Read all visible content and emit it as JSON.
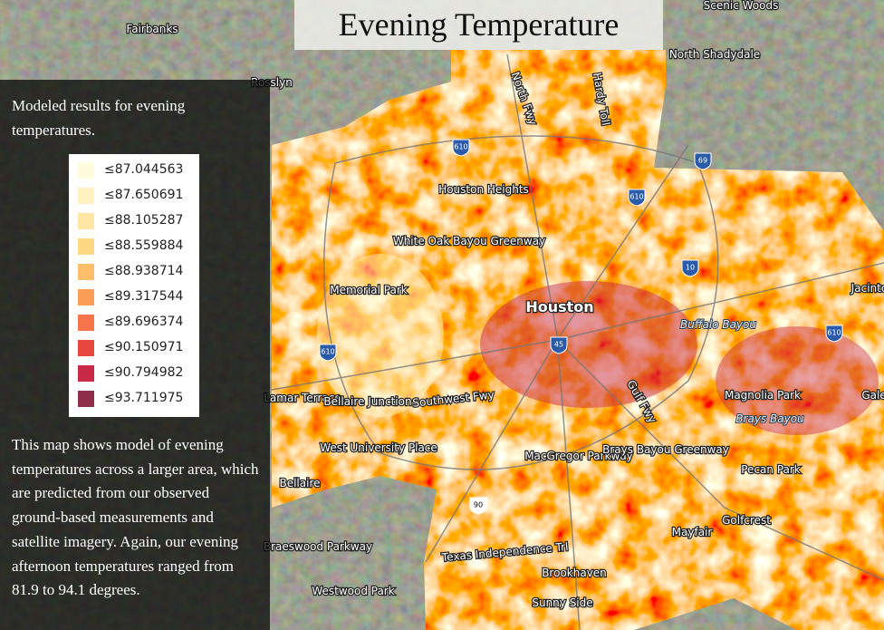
{
  "title": "Evening Temperature",
  "panel": {
    "intro": "Modeled results for evening temperatures.",
    "legend": [
      {
        "label": "≤87.044563",
        "color": "#fffbdc"
      },
      {
        "label": "≤87.650691",
        "color": "#fff2c2"
      },
      {
        "label": "≤88.105287",
        "color": "#fee6a4"
      },
      {
        "label": "≤88.559884",
        "color": "#fed883"
      },
      {
        "label": "≤88.938714",
        "color": "#fdbd6a"
      },
      {
        "label": "≤89.317544",
        "color": "#fc9d57"
      },
      {
        "label": "≤89.696374",
        "color": "#f8744b"
      },
      {
        "label": "≤90.150971",
        "color": "#e8473f"
      },
      {
        "label": "≤90.794982",
        "color": "#c92a48"
      },
      {
        "label": "≤93.711975",
        "color": "#8f2e4a"
      }
    ],
    "description": "This map shows model of evening temperatures across a larger area, which are predicted from our observed ground-based measurements and satellite imagery. Again, our evening afternoon temperatures ranged from 81.9 to 94.1 degrees."
  },
  "map": {
    "places": [
      "Fairbanks",
      "Rosslyn",
      "Scenic Woods",
      "North Shadydale",
      "Houston Heights",
      "White Oak Bayou Greenway",
      "Memorial Park",
      "Houston",
      "Magnolia Park",
      "Lamar Terrace",
      "Bellaire Junction",
      "Southwest Fwy",
      "West University Place",
      "MacGregor Parkway",
      "Brays Bayou Greenway",
      "Pecan Park",
      "Bellaire",
      "Braeswood Parkway",
      "Texas Independence Trl",
      "Brookhaven",
      "Mayfair",
      "Golfcrest",
      "Westwood Park",
      "Sunny Side",
      "North Fwy",
      "Hardy Toll",
      "Gulf Fwy",
      "Jacinto",
      "Gale"
    ],
    "water": [
      "Buffalo Bayou",
      "Brays Bayou"
    ],
    "shields": [
      "610",
      "69",
      "610",
      "10",
      "45",
      "610",
      "610",
      "90"
    ]
  }
}
